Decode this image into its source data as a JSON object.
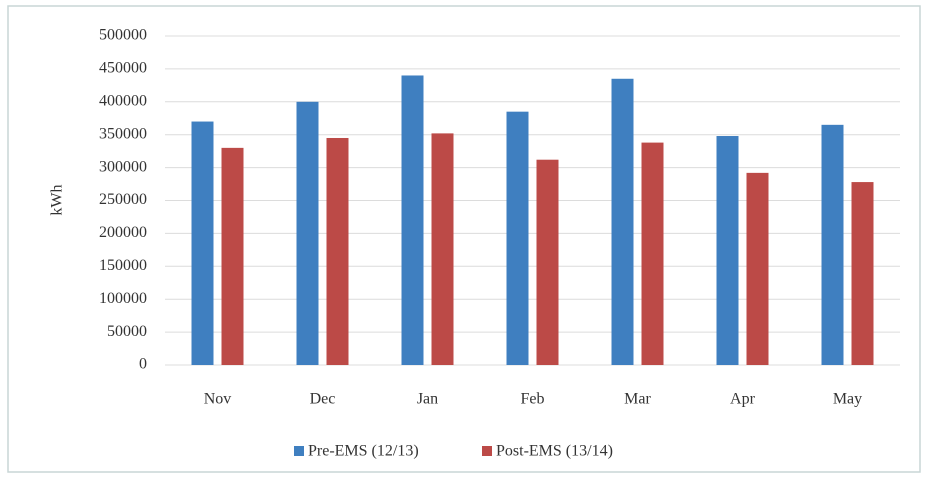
{
  "chart_data": {
    "type": "bar",
    "y_label": "kWh",
    "categories": [
      "Nov",
      "Dec",
      "Jan",
      "Feb",
      "Mar",
      "Apr",
      "May"
    ],
    "series": [
      {
        "name": "Pre-EMS (12/13)",
        "color": "#3f7fc0",
        "values": [
          370000,
          400000,
          440000,
          385000,
          435000,
          348000,
          365000
        ]
      },
      {
        "name": "Post-EMS (13/14)",
        "color": "#bc4a47",
        "values": [
          330000,
          345000,
          352000,
          312000,
          338000,
          292000,
          278000
        ]
      }
    ],
    "ylim": [
      0,
      500000
    ],
    "yticks": [
      0,
      50000,
      100000,
      150000,
      200000,
      250000,
      300000,
      350000,
      400000,
      450000,
      500000
    ],
    "grid": true,
    "legend": "bottom"
  }
}
